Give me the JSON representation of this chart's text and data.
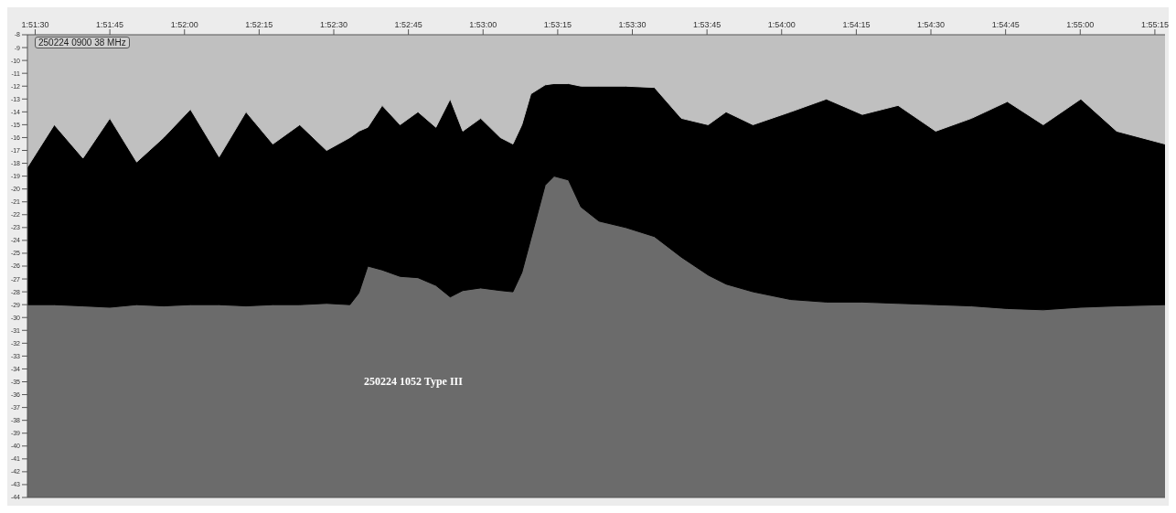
{
  "chart_data": {
    "type": "area",
    "title": "250224 0900 38 MHz",
    "annotations": [
      "250224 1052 Type III"
    ],
    "x": [
      1.8579,
      1.8594,
      1.861,
      1.8625,
      1.864,
      1.8655,
      1.867,
      1.8686,
      1.8701,
      1.8716,
      1.8731,
      1.8746,
      1.8759,
      1.8764,
      1.8769,
      1.8777,
      1.8787,
      1.8797,
      1.8807,
      1.8815,
      1.8822,
      1.8832,
      1.8843,
      1.885,
      1.8855,
      1.886,
      1.8868,
      1.8873,
      1.8881,
      1.8888,
      1.8898,
      1.8913,
      1.8929,
      1.8944,
      1.8959,
      1.8969,
      1.8984,
      1.9005,
      1.9025,
      1.9045,
      1.9065,
      1.9086,
      1.9106,
      1.9126,
      1.9146,
      1.9167,
      1.9187,
      1.9214
    ],
    "series": [
      {
        "color": "#000000",
        "values": [
          -29.0,
          -29.0,
          -29.1,
          -29.2,
          -29.0,
          -29.1,
          -29.0,
          -29.0,
          -29.1,
          -29.0,
          -29.0,
          -28.9,
          -29.0,
          -28.1,
          -26.0,
          -26.3,
          -26.8,
          -26.9,
          -27.5,
          -28.4,
          -27.9,
          -27.7,
          -27.9,
          -28.0,
          -26.5,
          -23.9,
          -19.7,
          -19.0,
          -19.3,
          -21.4,
          -22.5,
          -23.0,
          -23.7,
          -25.3,
          -26.7,
          -27.4,
          -28.0,
          -28.6,
          -28.8,
          -28.8,
          -28.9,
          -29.0,
          -29.1,
          -29.3,
          -29.4,
          -29.2,
          -29.1,
          -29.0
        ]
      },
      {
        "color": "#c0c0c0",
        "values": [
          -18.3,
          -15.0,
          -17.6,
          -14.5,
          -17.9,
          -16.0,
          -13.8,
          -17.5,
          -14.0,
          -16.5,
          -15.0,
          -17.0,
          -16.0,
          -15.5,
          -15.2,
          -13.5,
          -15.0,
          -14.0,
          -15.2,
          -13.0,
          -15.5,
          -14.5,
          -16.0,
          -16.5,
          -15.0,
          -12.6,
          -11.9,
          -11.8,
          -11.8,
          -12.0,
          -12.0,
          -12.0,
          -12.1,
          -14.5,
          -15.0,
          -14.0,
          -15.0,
          -14.0,
          -13.0,
          -14.2,
          -13.5,
          -15.5,
          -14.5,
          -13.2,
          -15.0,
          -13.0,
          -15.5,
          -16.5
        ]
      }
    ],
    "xlim": [
      1.8579,
      1.9214
    ],
    "xticks": [
      {
        "value": 1.858333,
        "label": "1:51:30"
      },
      {
        "value": 1.8625,
        "label": "1:51:45"
      },
      {
        "value": 1.866667,
        "label": "1:52:00"
      },
      {
        "value": 1.870833,
        "label": "1:52:15"
      },
      {
        "value": 1.875,
        "label": "1:52:30"
      },
      {
        "value": 1.879167,
        "label": "1:52:45"
      },
      {
        "value": 1.883333,
        "label": "1:53:00"
      },
      {
        "value": 1.8875,
        "label": "1:53:15"
      },
      {
        "value": 1.891667,
        "label": "1:53:30"
      },
      {
        "value": 1.895833,
        "label": "1:53:45"
      },
      {
        "value": 1.9,
        "label": "1:54:00"
      },
      {
        "value": 1.904167,
        "label": "1:54:15"
      },
      {
        "value": 1.908333,
        "label": "1:54:30"
      },
      {
        "value": 1.9125,
        "label": "1:54:45"
      },
      {
        "value": 1.916667,
        "label": "1:55:00"
      },
      {
        "value": 1.920833,
        "label": "1:55:15"
      }
    ],
    "ylim": [
      -44,
      -8
    ],
    "yticks": [
      -8,
      -9,
      -10,
      -11,
      -12,
      -13,
      -14,
      -15,
      -16,
      -17,
      -18,
      -19,
      -20,
      -21,
      -22,
      -23,
      -24,
      -25,
      -26,
      -27,
      -28,
      -29,
      -30,
      -31,
      -32,
      -33,
      -34,
      -35,
      -36,
      -37,
      -38,
      -39,
      -40,
      -41,
      -42,
      -43,
      -44
    ],
    "marker": "none"
  }
}
